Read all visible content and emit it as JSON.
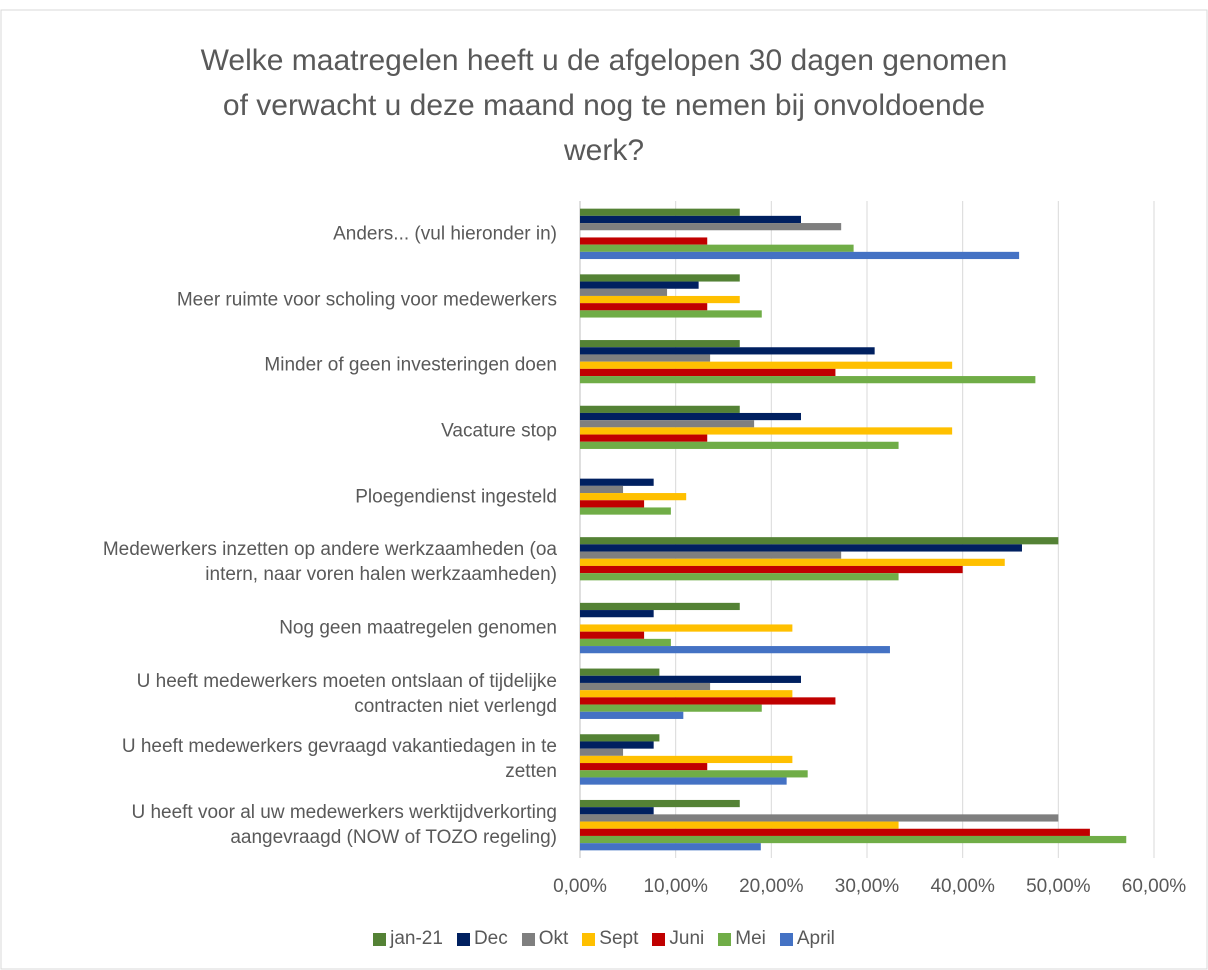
{
  "chart_data": {
    "type": "hbar",
    "title": "Welke maatregelen heeft u de afgelopen 30 dagen genomen\nof verwacht u deze maand nog te nemen bij onvoldoende\nwerk?",
    "categories": [
      "Anders... (vul hieronder in)",
      "Meer ruimte voor scholing voor medewerkers",
      "Minder of geen investeringen doen",
      "Vacature stop",
      "Ploegendienst ingesteld",
      "Medewerkers inzetten op andere werkzaamheden (oa\nintern, naar voren halen werkzaamheden)",
      "Nog geen maatregelen genomen",
      "U heeft medewerkers moeten ontslaan of tijdelijke\ncontracten niet verlengd",
      "U heeft medewerkers gevraagd vakantiedagen in te\nzetten",
      "U heeft voor al uw medewerkers werktijdverkorting\naangevraagd (NOW of TOZO regeling)"
    ],
    "series": [
      {
        "name": "jan-21",
        "color": "#548235",
        "values": [
          16.7,
          16.7,
          16.7,
          16.7,
          null,
          50.0,
          16.7,
          8.3,
          8.3,
          16.7
        ]
      },
      {
        "name": "Dec",
        "color": "#002060",
        "values": [
          23.1,
          12.4,
          30.8,
          23.1,
          7.7,
          46.2,
          7.7,
          23.1,
          7.7,
          7.7
        ]
      },
      {
        "name": "Okt",
        "color": "#7f7f7f",
        "values": [
          27.3,
          9.1,
          13.6,
          18.2,
          4.5,
          27.3,
          null,
          13.6,
          4.5,
          50.0
        ]
      },
      {
        "name": "Sept",
        "color": "#ffc000",
        "values": [
          null,
          16.7,
          38.9,
          38.9,
          11.1,
          44.4,
          22.2,
          22.2,
          22.2,
          33.3
        ]
      },
      {
        "name": "Juni",
        "color": "#c00000",
        "values": [
          13.3,
          13.3,
          26.7,
          13.3,
          6.7,
          40.0,
          6.7,
          26.7,
          13.3,
          53.3
        ]
      },
      {
        "name": "Mei",
        "color": "#70ad47",
        "values": [
          28.6,
          19.0,
          47.6,
          33.3,
          9.5,
          33.3,
          9.5,
          19.0,
          23.8,
          57.1
        ]
      },
      {
        "name": "April",
        "color": "#4472c4",
        "values": [
          45.9,
          null,
          null,
          null,
          null,
          null,
          32.4,
          10.8,
          21.6,
          18.9
        ]
      }
    ],
    "xlim": [
      0,
      60
    ],
    "xticks": [
      {
        "value": 0,
        "label": "0,00%"
      },
      {
        "value": 10,
        "label": "10,00%"
      },
      {
        "value": 20,
        "label": "20,00%"
      },
      {
        "value": 30,
        "label": "30,00%"
      },
      {
        "value": 40,
        "label": "40,00%"
      },
      {
        "value": 50,
        "label": "50,00%"
      },
      {
        "value": 60,
        "label": "60,00%"
      }
    ],
    "grid": true,
    "legend": "bottom"
  }
}
